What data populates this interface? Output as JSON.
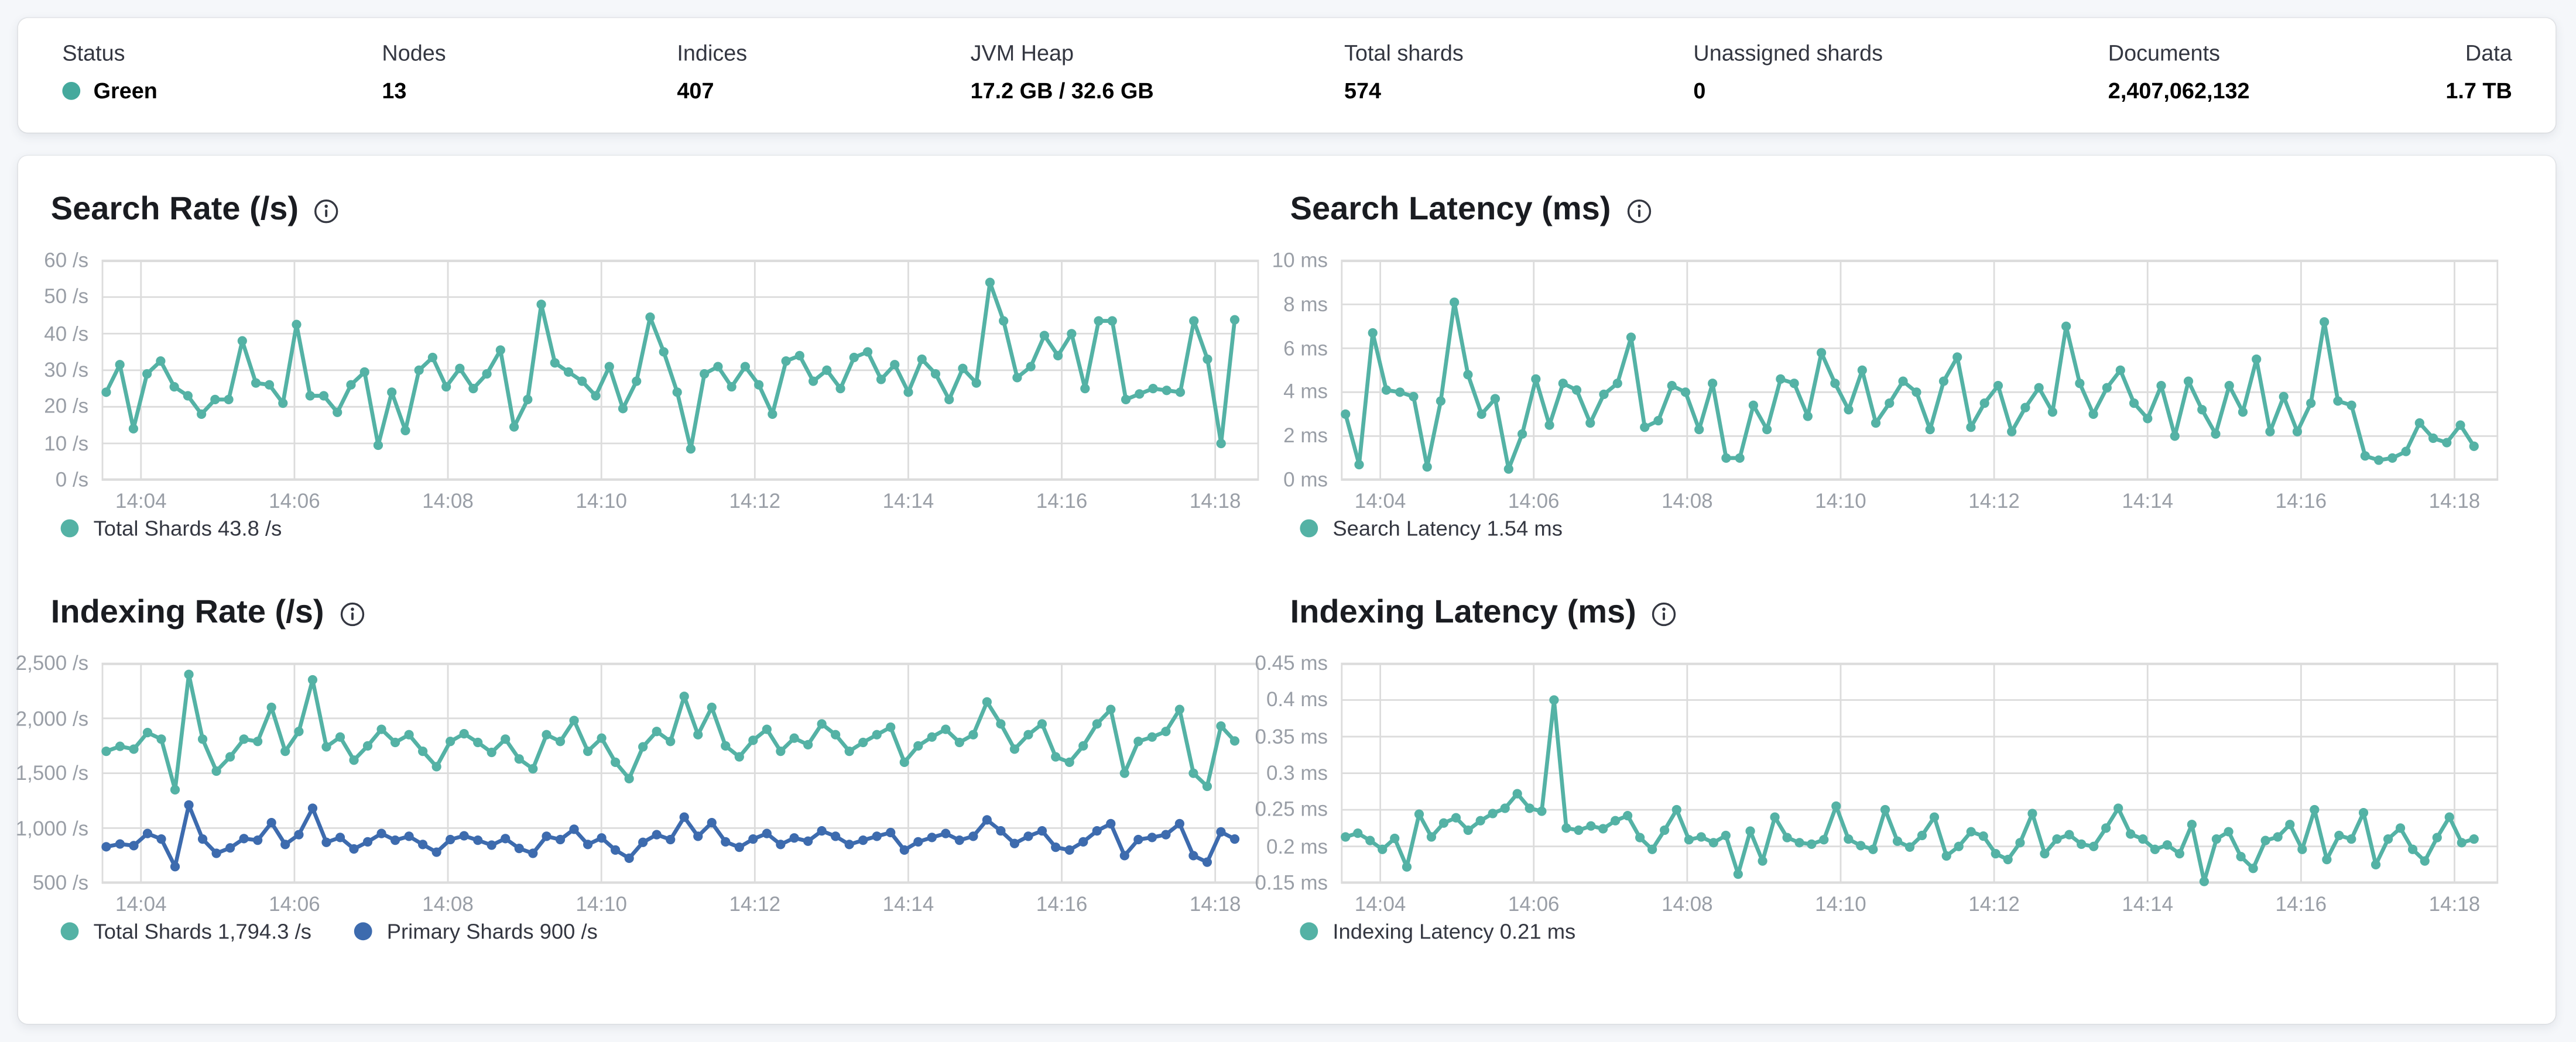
{
  "page": {
    "background": "#f5f7fa"
  },
  "colors": {
    "page_bg": "#f5f7fa",
    "panel_bg": "#ffffff",
    "grid": "#dcdcdc",
    "axis_text": "#999ea6",
    "title_text": "#1a1c21",
    "legend_text": "#343741",
    "status_green_dot": "#45a99d",
    "teal": "#54b2a5",
    "blue": "#3d6bae"
  },
  "status_bar": {
    "items": [
      {
        "label": "Status",
        "value": "Green",
        "has_dot": true
      },
      {
        "label": "Nodes",
        "value": "13"
      },
      {
        "label": "Indices",
        "value": "407"
      },
      {
        "label": "JVM Heap",
        "value": "17.2 GB / 32.6 GB"
      },
      {
        "label": "Total shards",
        "value": "574"
      },
      {
        "label": "Unassigned shards",
        "value": "0"
      },
      {
        "label": "Documents",
        "value": "2,407,062,132"
      },
      {
        "label": "Data",
        "value": "1.7 TB"
      }
    ]
  },
  "chart_data": [
    {
      "type": "line",
      "title": "Search Rate (/s)",
      "ylim": [
        0,
        60
      ],
      "y_tick_values": [
        60,
        50,
        40,
        30,
        20,
        10,
        0
      ],
      "y_tick_labels": [
        "60 /s",
        "50 /s",
        "40 /s",
        "30 /s",
        "20 /s",
        "10 /s",
        "0 /s"
      ],
      "x_tick_labels": [
        "14:04",
        "14:06",
        "14:08",
        "14:10",
        "14:12",
        "14:14",
        "14:16",
        "14:18"
      ],
      "grid": true,
      "legend_position": "bottom",
      "series": [
        {
          "name": "Total Shards",
          "color": "#54b2a5",
          "legend": "Total Shards 43.8 /s",
          "values": [
            24,
            31.5,
            14,
            29,
            32.5,
            25.5,
            23,
            18,
            22,
            22,
            38,
            26.5,
            26,
            21,
            42.5,
            23,
            23,
            18.5,
            26,
            29.5,
            9.5,
            24,
            13.5,
            30,
            33.5,
            25.5,
            30.5,
            25,
            29,
            35.5,
            14.5,
            22,
            48,
            32,
            29.5,
            27,
            23,
            31,
            19.5,
            27,
            44.5,
            35,
            24,
            8.5,
            29,
            31,
            25.5,
            31,
            26,
            18,
            32.5,
            34,
            27,
            30,
            25,
            33.5,
            35,
            27.5,
            31.5,
            24,
            33,
            29,
            22,
            30.5,
            26.5,
            54,
            43.5,
            28,
            31,
            39.5,
            34,
            40,
            25,
            43.5,
            43.5,
            22,
            23.5,
            25,
            24.5,
            24,
            43.5,
            33,
            10,
            43.8
          ]
        }
      ]
    },
    {
      "type": "line",
      "title": "Search Latency (ms)",
      "ylim": [
        0,
        10
      ],
      "y_tick_values": [
        10,
        8,
        6,
        4,
        2,
        0
      ],
      "y_tick_labels": [
        "10 ms",
        "8 ms",
        "6 ms",
        "4 ms",
        "2 ms",
        "0 ms"
      ],
      "x_tick_labels": [
        "14:04",
        "14:06",
        "14:08",
        "14:10",
        "14:12",
        "14:14",
        "14:16",
        "14:18"
      ],
      "grid": true,
      "legend_position": "bottom",
      "series": [
        {
          "name": "Search Latency",
          "color": "#54b2a5",
          "legend": "Search Latency 1.54 ms",
          "values": [
            3.0,
            0.7,
            6.7,
            4.1,
            4.0,
            3.8,
            0.6,
            3.6,
            8.1,
            4.8,
            3.0,
            3.7,
            0.5,
            2.1,
            4.6,
            2.5,
            4.4,
            4.1,
            2.6,
            3.9,
            4.4,
            6.5,
            2.4,
            2.7,
            4.3,
            4.0,
            2.3,
            4.4,
            1.0,
            1.0,
            3.4,
            2.3,
            4.6,
            4.4,
            2.9,
            5.8,
            4.4,
            3.2,
            5.0,
            2.6,
            3.5,
            4.5,
            4.0,
            2.3,
            4.5,
            5.6,
            2.4,
            3.5,
            4.3,
            2.2,
            3.3,
            4.2,
            3.1,
            7.0,
            4.4,
            3.0,
            4.2,
            5.0,
            3.5,
            2.8,
            4.3,
            2.0,
            4.5,
            3.2,
            2.1,
            4.3,
            3.1,
            5.5,
            2.2,
            3.8,
            2.2,
            3.5,
            7.2,
            3.6,
            3.4,
            1.1,
            0.9,
            1.0,
            1.3,
            2.6,
            1.9,
            1.7,
            2.5,
            1.54
          ]
        }
      ]
    },
    {
      "type": "line",
      "title": "Indexing Rate (/s)",
      "ylim": [
        500,
        2500
      ],
      "y_tick_values": [
        2500,
        2000,
        1500,
        1000,
        500
      ],
      "y_tick_labels": [
        "2,500 /s",
        "2,000 /s",
        "1,500 /s",
        "1,000 /s",
        "500 /s"
      ],
      "x_tick_labels": [
        "14:04",
        "14:06",
        "14:08",
        "14:10",
        "14:12",
        "14:14",
        "14:16",
        "14:18"
      ],
      "grid": true,
      "legend_position": "bottom",
      "series": [
        {
          "name": "Total Shards",
          "color": "#54b2a5",
          "legend": "Total Shards 1,794.3 /s",
          "values": [
            1700,
            1745,
            1720,
            1870,
            1810,
            1350,
            2400,
            1810,
            1520,
            1650,
            1810,
            1790,
            2100,
            1700,
            1880,
            2350,
            1740,
            1830,
            1620,
            1750,
            1900,
            1780,
            1850,
            1700,
            1560,
            1790,
            1860,
            1780,
            1690,
            1810,
            1630,
            1540,
            1850,
            1790,
            1980,
            1700,
            1820,
            1600,
            1450,
            1740,
            1880,
            1790,
            2200,
            1850,
            2100,
            1750,
            1650,
            1800,
            1900,
            1700,
            1820,
            1760,
            1950,
            1850,
            1700,
            1780,
            1850,
            1920,
            1600,
            1750,
            1830,
            1900,
            1780,
            1850,
            2150,
            1950,
            1720,
            1850,
            1950,
            1650,
            1600,
            1750,
            1950,
            2080,
            1500,
            1790,
            1830,
            1880,
            2080,
            1500,
            1380,
            1930,
            1794.3
          ]
        },
        {
          "name": "Primary Shards",
          "color": "#3d6bae",
          "legend": "Primary Shards 900 /s",
          "values": [
            830,
            855,
            840,
            950,
            900,
            650,
            1210,
            900,
            770,
            820,
            905,
            890,
            1050,
            850,
            940,
            1180,
            870,
            915,
            810,
            875,
            950,
            890,
            925,
            850,
            780,
            895,
            930,
            890,
            845,
            905,
            815,
            770,
            925,
            895,
            990,
            850,
            910,
            800,
            725,
            870,
            940,
            895,
            1100,
            925,
            1050,
            875,
            825,
            900,
            950,
            850,
            910,
            880,
            975,
            925,
            850,
            890,
            925,
            960,
            800,
            875,
            915,
            950,
            890,
            925,
            1075,
            975,
            860,
            925,
            975,
            825,
            800,
            875,
            975,
            1040,
            750,
            895,
            915,
            940,
            1040,
            750,
            690,
            965,
            900
          ]
        }
      ]
    },
    {
      "type": "line",
      "title": "Indexing Latency (ms)",
      "ylim": [
        0.15,
        0.45
      ],
      "y_tick_values": [
        0.45,
        0.4,
        0.35,
        0.3,
        0.25,
        0.2,
        0.15
      ],
      "y_tick_labels": [
        "0.45 ms",
        "0.4 ms",
        "0.35 ms",
        "0.3 ms",
        "0.25 ms",
        "0.2 ms",
        "0.15 ms"
      ],
      "x_tick_labels": [
        "14:04",
        "14:06",
        "14:08",
        "14:10",
        "14:12",
        "14:14",
        "14:16",
        "14:18"
      ],
      "grid": true,
      "legend_position": "bottom",
      "series": [
        {
          "name": "Indexing Latency",
          "color": "#54b2a5",
          "legend": "Indexing Latency 0.21 ms",
          "values": [
            0.213,
            0.218,
            0.208,
            0.196,
            0.211,
            0.172,
            0.244,
            0.213,
            0.232,
            0.239,
            0.222,
            0.235,
            0.245,
            0.252,
            0.272,
            0.252,
            0.248,
            0.4,
            0.225,
            0.222,
            0.228,
            0.224,
            0.235,
            0.242,
            0.212,
            0.196,
            0.222,
            0.25,
            0.209,
            0.213,
            0.205,
            0.215,
            0.162,
            0.221,
            0.18,
            0.24,
            0.212,
            0.205,
            0.203,
            0.209,
            0.255,
            0.21,
            0.201,
            0.196,
            0.25,
            0.207,
            0.199,
            0.215,
            0.24,
            0.187,
            0.2,
            0.22,
            0.214,
            0.19,
            0.182,
            0.205,
            0.245,
            0.19,
            0.21,
            0.216,
            0.203,
            0.2,
            0.225,
            0.252,
            0.217,
            0.21,
            0.196,
            0.202,
            0.19,
            0.23,
            0.152,
            0.21,
            0.22,
            0.186,
            0.17,
            0.208,
            0.213,
            0.23,
            0.196,
            0.25,
            0.182,
            0.215,
            0.21,
            0.246,
            0.175,
            0.21,
            0.225,
            0.196,
            0.18,
            0.212,
            0.24,
            0.205,
            0.21
          ]
        }
      ]
    }
  ]
}
